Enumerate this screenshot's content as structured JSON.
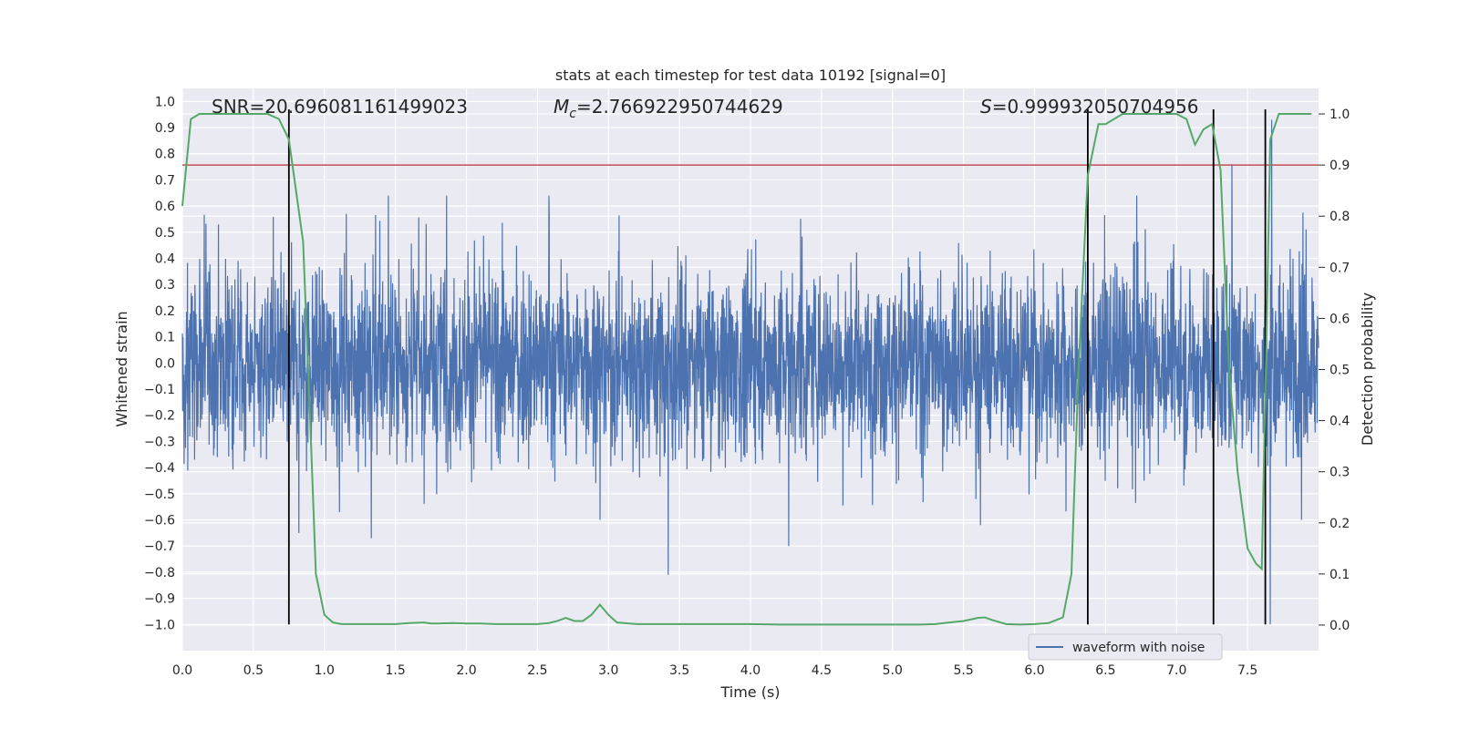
{
  "chart_data": {
    "type": "line",
    "title": "stats at each timestep for test data 10192 [signal=0]",
    "xlabel": "Time (s)",
    "ylabel": "Whitened strain",
    "y2label": "Detection probability",
    "xlim": [
      0.0,
      8.0
    ],
    "ylim": [
      -1.1,
      1.05
    ],
    "y2lim": [
      -0.05,
      1.05
    ],
    "xticks": [
      0.0,
      0.5,
      1.0,
      1.5,
      2.0,
      2.5,
      3.0,
      3.5,
      4.0,
      4.5,
      5.0,
      5.5,
      6.0,
      6.5,
      7.0,
      7.5
    ],
    "yticks": [
      1.0,
      0.9,
      0.8,
      0.7,
      0.6,
      0.5,
      0.4,
      0.3,
      0.2,
      0.1,
      0.0,
      -0.1,
      -0.2,
      -0.3,
      -0.4,
      -0.5,
      -0.6,
      -0.7,
      -0.8,
      -0.9,
      -1.0
    ],
    "y2ticks": [
      1.0,
      0.9,
      0.8,
      0.7,
      0.6,
      0.5,
      0.4,
      0.3,
      0.2,
      0.1,
      0.0
    ],
    "grid": true,
    "legend_position": "lower-right",
    "annotations": {
      "snr": "SNR=20.696081161499023",
      "mc_symbol": "M",
      "mc_sub": "c",
      "mc_value": "=2.766922950744629",
      "s_symbol": "S",
      "s_value": "=0.999932050704956"
    },
    "threshold": {
      "value": 0.9,
      "axis": "right",
      "color": "#c44e52"
    },
    "vlines": [
      {
        "x": 0.75,
        "ymin": -1.0,
        "ymax": 0.97
      },
      {
        "x": 6.375,
        "ymin": -1.0,
        "ymax": 0.97
      },
      {
        "x": 7.26,
        "ymin": -1.0,
        "ymax": 0.97
      },
      {
        "x": 7.625,
        "ymin": -1.0,
        "ymax": 0.97
      }
    ],
    "series": [
      {
        "name": "waveform with noise",
        "axis": "left",
        "color": "#4c72b0",
        "kind": "noise",
        "sample_count": 4000,
        "typical_range": [
          -0.4,
          0.4
        ],
        "peaks": [
          {
            "x": 1.45,
            "y": 0.64
          },
          {
            "x": 1.86,
            "y": 0.64
          },
          {
            "x": 2.58,
            "y": 0.64
          },
          {
            "x": 6.72,
            "y": 0.64
          },
          {
            "x": 7.39,
            "y": 0.76
          },
          {
            "x": 7.67,
            "y": 0.93
          },
          {
            "x": 3.42,
            "y": -0.81
          },
          {
            "x": 4.27,
            "y": -0.7
          },
          {
            "x": 1.33,
            "y": -0.67
          },
          {
            "x": 2.94,
            "y": -0.6
          },
          {
            "x": 0.82,
            "y": -0.65
          },
          {
            "x": 7.66,
            "y": -1.0
          },
          {
            "x": 5.62,
            "y": -0.62
          },
          {
            "x": 7.88,
            "y": -0.6
          }
        ]
      },
      {
        "name": "",
        "axis": "right",
        "color": "#55a868",
        "x": [
          0.0,
          0.06,
          0.12,
          0.2,
          0.3,
          0.4,
          0.5,
          0.6,
          0.68,
          0.75,
          0.8,
          0.85,
          0.9,
          0.94,
          1.0,
          1.06,
          1.12,
          1.2,
          1.3,
          1.4,
          1.5,
          1.6,
          1.7,
          1.75,
          1.8,
          1.9,
          2.0,
          2.1,
          2.2,
          2.3,
          2.4,
          2.5,
          2.58,
          2.64,
          2.7,
          2.76,
          2.82,
          2.88,
          2.94,
          3.0,
          3.06,
          3.2,
          3.4,
          3.6,
          3.8,
          4.0,
          4.2,
          4.4,
          4.6,
          4.8,
          5.0,
          5.2,
          5.3,
          5.4,
          5.5,
          5.6,
          5.65,
          5.7,
          5.8,
          5.9,
          6.0,
          6.1,
          6.2,
          6.26,
          6.31,
          6.375,
          6.45,
          6.5,
          6.56,
          6.62,
          6.7,
          6.8,
          6.9,
          7.0,
          7.07,
          7.13,
          7.19,
          7.25,
          7.31,
          7.37,
          7.43,
          7.5,
          7.56,
          7.6,
          7.625,
          7.66,
          7.72,
          7.8,
          7.9,
          7.95
        ],
        "values": [
          0.82,
          0.99,
          1.0,
          1.0,
          1.0,
          1.0,
          1.0,
          1.0,
          0.99,
          0.95,
          0.85,
          0.75,
          0.4,
          0.1,
          0.02,
          0.005,
          0.002,
          0.002,
          0.002,
          0.002,
          0.002,
          0.004,
          0.005,
          0.003,
          0.003,
          0.004,
          0.003,
          0.003,
          0.002,
          0.002,
          0.002,
          0.002,
          0.004,
          0.008,
          0.014,
          0.008,
          0.008,
          0.02,
          0.04,
          0.02,
          0.005,
          0.002,
          0.002,
          0.002,
          0.002,
          0.002,
          0.001,
          0.001,
          0.001,
          0.001,
          0.001,
          0.001,
          0.002,
          0.005,
          0.008,
          0.014,
          0.015,
          0.01,
          0.002,
          0.001,
          0.002,
          0.004,
          0.015,
          0.1,
          0.5,
          0.88,
          0.98,
          0.98,
          0.99,
          1.0,
          1.0,
          1.0,
          1.0,
          1.0,
          0.99,
          0.94,
          0.97,
          0.98,
          0.89,
          0.5,
          0.3,
          0.15,
          0.12,
          0.11,
          0.45,
          0.95,
          1.0,
          1.0,
          1.0,
          1.0
        ]
      }
    ]
  }
}
